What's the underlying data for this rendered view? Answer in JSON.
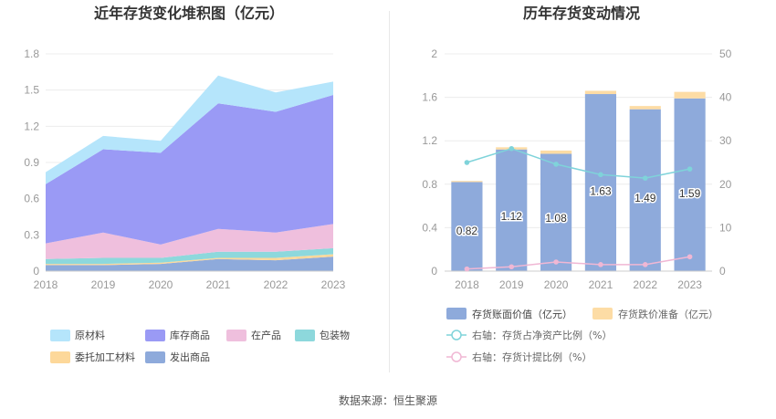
{
  "source_text": "数据来源：恒生聚源",
  "chart_data": [
    {
      "type": "area",
      "stacked": true,
      "title": "近年存货变化堆积图（亿元）",
      "x": [
        "2018",
        "2019",
        "2020",
        "2021",
        "2022",
        "2023"
      ],
      "ylim": [
        0,
        1.8
      ],
      "yticks": [
        "0",
        "0.3",
        "0.6",
        "0.9",
        "1.2",
        "1.5",
        "1.8"
      ],
      "grid": true,
      "legend_position": "bottom",
      "series": [
        {
          "name": "发出商品",
          "color": "#8eaadb",
          "values": [
            0.05,
            0.05,
            0.06,
            0.1,
            0.09,
            0.12
          ]
        },
        {
          "name": "委托加工材料",
          "color": "#fdd89a",
          "values": [
            0.01,
            0.01,
            0.01,
            0.01,
            0.02,
            0.02
          ]
        },
        {
          "name": "包装物",
          "color": "#8dd8dc",
          "values": [
            0.04,
            0.05,
            0.04,
            0.05,
            0.05,
            0.05
          ]
        },
        {
          "name": "在产品",
          "color": "#efbfdd",
          "values": [
            0.13,
            0.21,
            0.11,
            0.19,
            0.16,
            0.2
          ]
        },
        {
          "name": "库存商品",
          "color": "#9a9af5",
          "values": [
            0.49,
            0.69,
            0.76,
            1.04,
            1.0,
            1.07
          ]
        },
        {
          "name": "原材料",
          "color": "#b5e5fb",
          "values": [
            0.1,
            0.11,
            0.1,
            0.23,
            0.16,
            0.11
          ]
        }
      ],
      "legend_rows": [
        [
          "原材料",
          "库存商品",
          "在产品",
          "包装物"
        ],
        [
          "委托加工材料",
          "发出商品"
        ]
      ]
    },
    {
      "type": "bar",
      "title": "历年存货变动情况",
      "categories": [
        "2018",
        "2019",
        "2020",
        "2021",
        "2022",
        "2023"
      ],
      "ylim": [
        0,
        2
      ],
      "yticks": [
        "0",
        "0.4",
        "0.8",
        "1.2",
        "1.6",
        "2"
      ],
      "y2lim": [
        0,
        50
      ],
      "y2ticks": [
        "0",
        "10",
        "20",
        "30",
        "40",
        "50"
      ],
      "grid": true,
      "legend_position": "bottom",
      "series": [
        {
          "name": "存货账面价值（亿元）",
          "kind": "bar",
          "axis": "left",
          "color": "#8eaadb",
          "values": [
            0.82,
            1.12,
            1.08,
            1.63,
            1.49,
            1.59
          ],
          "labels": [
            "0.82",
            "1.12",
            "1.08",
            "1.63",
            "1.49",
            "1.59"
          ]
        },
        {
          "name": "存货跌价准备（亿元）",
          "kind": "bar-stack",
          "axis": "left",
          "color": "#fddca5",
          "values": [
            0.01,
            0.02,
            0.03,
            0.03,
            0.03,
            0.06
          ]
        },
        {
          "name": "右轴：存货占净资产比例（%）",
          "kind": "line",
          "axis": "right",
          "color": "#7fd3da",
          "values": [
            25.0,
            28.2,
            24.6,
            22.2,
            21.4,
            23.5
          ]
        },
        {
          "name": "右轴：存货计提比例（%）",
          "kind": "line",
          "axis": "right",
          "color": "#f0b7d4",
          "values": [
            0.5,
            1.0,
            2.1,
            1.5,
            1.5,
            3.3
          ]
        }
      ]
    }
  ]
}
